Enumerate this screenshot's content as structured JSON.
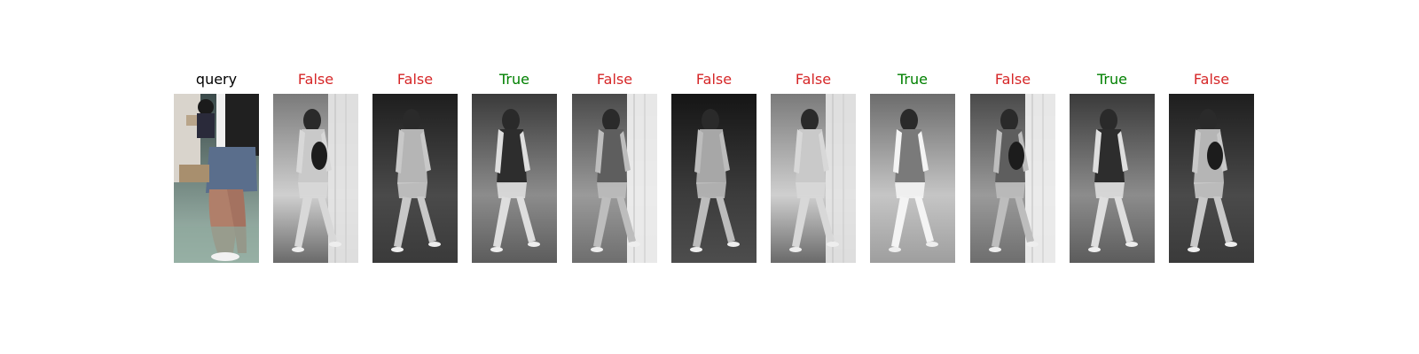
{
  "figure": {
    "panels": [
      {
        "caption": "query",
        "caption_color": "#000000",
        "kind": "query",
        "image": "color crop of legs in denim shorts and light shoes, indoor background with a shelf and notices",
        "palette": "color"
      },
      {
        "caption": "False",
        "caption_color": "#d62728",
        "kind": "gallery",
        "image": "grayscale pedestrian, light top, dark backpack, walking right near white pillar",
        "palette": "gray-light"
      },
      {
        "caption": "False",
        "caption_color": "#d62728",
        "kind": "gallery",
        "image": "grayscale pedestrian at night, light clothes, walking left past pillar",
        "palette": "gray-dark"
      },
      {
        "caption": "True",
        "caption_color": "#008000",
        "kind": "gallery",
        "image": "grayscale pedestrian from behind, long dark hair, dark vest, light shorts",
        "palette": "gray-mid"
      },
      {
        "caption": "False",
        "caption_color": "#d62728",
        "kind": "gallery",
        "image": "grayscale pedestrian partly hidden by tiled pillar",
        "palette": "gray-pillar"
      },
      {
        "caption": "False",
        "caption_color": "#d62728",
        "kind": "gallery",
        "image": "grayscale pedestrian at night carrying bag, dark background",
        "palette": "gray-night"
      },
      {
        "caption": "False",
        "caption_color": "#d62728",
        "kind": "gallery",
        "image": "grayscale pedestrian, patterned clothes, walking right in corridor",
        "palette": "gray-light"
      },
      {
        "caption": "True",
        "caption_color": "#008000",
        "kind": "gallery",
        "image": "bright grayscale pedestrian from behind, long hair, white shorts",
        "palette": "gray-bright"
      },
      {
        "caption": "False",
        "caption_color": "#d62728",
        "kind": "gallery",
        "image": "grayscale pedestrian with black backpack beside tiled pillar",
        "palette": "gray-pillar"
      },
      {
        "caption": "True",
        "caption_color": "#008000",
        "kind": "gallery",
        "image": "grayscale pedestrian from behind, long hair, light shorts, indoor",
        "palette": "gray-mid"
      },
      {
        "caption": "False",
        "caption_color": "#d62728",
        "kind": "gallery",
        "image": "grayscale pedestrian wearing patterned outfit and large backpack",
        "palette": "gray-dark"
      }
    ]
  }
}
